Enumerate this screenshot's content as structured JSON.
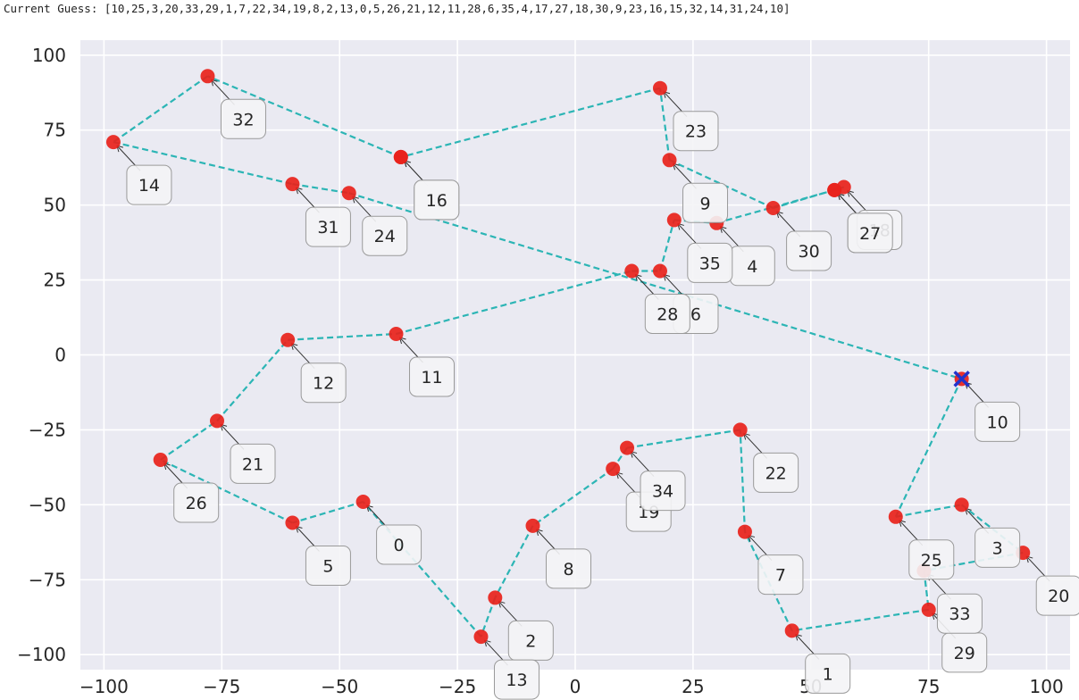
{
  "header": {
    "guess_text": "Current Guess: [10,25,3,20,33,29,1,7,22,34,19,8,2,13,0,5,26,21,12,11,28,6,35,4,17,27,18,30,9,23,16,15,32,14,31,24,10]"
  },
  "colors": {
    "plot_background": "#eaeaf2",
    "grid": "#ffffff",
    "path": "#2cb5b5",
    "point": "#e8221b",
    "start_marker": "#2233cc"
  },
  "chart_data": {
    "type": "scatter",
    "title": "",
    "xlabel": "",
    "ylabel": "",
    "xlim": [
      -105,
      105
    ],
    "ylim": [
      -105,
      105
    ],
    "x_ticks": [
      "−100",
      "−75",
      "−50",
      "−25",
      "0",
      "25",
      "50",
      "75",
      "100"
    ],
    "y_ticks": [
      "100",
      "75",
      "50",
      "25",
      "0",
      "−25",
      "−50",
      "−75",
      "−100"
    ],
    "grid": true,
    "points": [
      {
        "id": "0",
        "x": -45,
        "y": -49
      },
      {
        "id": "1",
        "x": 46,
        "y": -92
      },
      {
        "id": "2",
        "x": -17,
        "y": -81
      },
      {
        "id": "3",
        "x": 82,
        "y": -50
      },
      {
        "id": "4",
        "x": 30,
        "y": 44
      },
      {
        "id": "5",
        "x": -60,
        "y": -56
      },
      {
        "id": "6",
        "x": 18,
        "y": 28
      },
      {
        "id": "7",
        "x": 36,
        "y": -59
      },
      {
        "id": "8",
        "x": -9,
        "y": -57
      },
      {
        "id": "9",
        "x": 20,
        "y": 65
      },
      {
        "id": "10",
        "x": 82,
        "y": -8
      },
      {
        "id": "11",
        "x": -38,
        "y": 7
      },
      {
        "id": "12",
        "x": -61,
        "y": 5
      },
      {
        "id": "13",
        "x": -20,
        "y": -94
      },
      {
        "id": "14",
        "x": -98,
        "y": 71
      },
      {
        "id": "15",
        "x": -37,
        "y": 66
      },
      {
        "id": "16",
        "x": -37,
        "y": 66
      },
      {
        "id": "17",
        "x": 55,
        "y": 55
      },
      {
        "id": "18",
        "x": 57,
        "y": 56
      },
      {
        "id": "19",
        "x": 8,
        "y": -38
      },
      {
        "id": "20",
        "x": 95,
        "y": -66
      },
      {
        "id": "21",
        "x": -76,
        "y": -22
      },
      {
        "id": "22",
        "x": 35,
        "y": -25
      },
      {
        "id": "23",
        "x": 18,
        "y": 89
      },
      {
        "id": "24",
        "x": -48,
        "y": 54
      },
      {
        "id": "25",
        "x": 68,
        "y": -54
      },
      {
        "id": "26",
        "x": -88,
        "y": -35
      },
      {
        "id": "27",
        "x": 55,
        "y": 55
      },
      {
        "id": "28",
        "x": 12,
        "y": 28
      },
      {
        "id": "29",
        "x": 75,
        "y": -85
      },
      {
        "id": "30",
        "x": 42,
        "y": 49
      },
      {
        "id": "31",
        "x": -60,
        "y": 57
      },
      {
        "id": "32",
        "x": -78,
        "y": 93
      },
      {
        "id": "33",
        "x": 74,
        "y": -72
      },
      {
        "id": "34",
        "x": 11,
        "y": -31
      },
      {
        "id": "35",
        "x": 21,
        "y": 45
      }
    ],
    "path_order": [
      10,
      25,
      3,
      20,
      33,
      29,
      1,
      7,
      22,
      34,
      19,
      8,
      2,
      13,
      0,
      5,
      26,
      21,
      12,
      11,
      28,
      6,
      35,
      4,
      17,
      27,
      18,
      30,
      9,
      23,
      16,
      15,
      32,
      14,
      31,
      24,
      10
    ],
    "start_point": "10"
  }
}
